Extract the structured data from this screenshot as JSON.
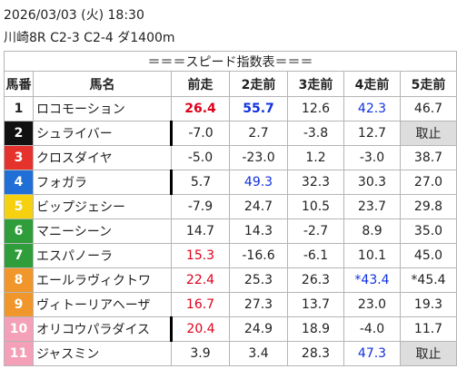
{
  "header": {
    "date": "2026/03/03 (火) 18:30",
    "race": "川崎8R C2-3 C2-4 ダ1400m"
  },
  "table": {
    "title": "＝＝＝スピード指数表＝＝＝",
    "columns": [
      "馬番",
      "馬名",
      "前走",
      "2走前",
      "3走前",
      "4走前",
      "5走前"
    ],
    "rows": [
      [
        "1",
        "ロコモーション",
        "26.4",
        "55.7",
        "12.6",
        "42.3",
        "46.7"
      ],
      [
        "2",
        "シュライバー",
        "-7.0",
        "2.7",
        "-3.8",
        "12.7",
        "取止"
      ],
      [
        "3",
        "クロスダイヤ",
        "-5.0",
        "-23.0",
        "1.2",
        "-3.0",
        "38.7"
      ],
      [
        "4",
        "フォガラ",
        "5.7",
        "49.3",
        "32.3",
        "30.3",
        "27.0"
      ],
      [
        "5",
        "ビップジェシー",
        "-7.9",
        "24.7",
        "10.5",
        "23.7",
        "29.8"
      ],
      [
        "6",
        "マニーシーン",
        "14.7",
        "14.3",
        "-2.7",
        "8.9",
        "35.0"
      ],
      [
        "7",
        "エスパノーラ",
        "15.3",
        "-16.6",
        "-6.1",
        "10.1",
        "45.0"
      ],
      [
        "8",
        "エールラヴィクトワ",
        "22.4",
        "25.3",
        "26.3",
        "*43.4",
        "*45.4"
      ],
      [
        "9",
        "ヴィトーリアヘーザ",
        "16.7",
        "27.3",
        "13.7",
        "23.0",
        "19.3"
      ],
      [
        "10",
        "オリコウパラダイス",
        "20.4",
        "24.9",
        "18.9",
        "-4.0",
        "11.7"
      ],
      [
        "11",
        "ジャスミン",
        "3.9",
        "3.4",
        "28.3",
        "47.3",
        "取止"
      ]
    ]
  }
}
